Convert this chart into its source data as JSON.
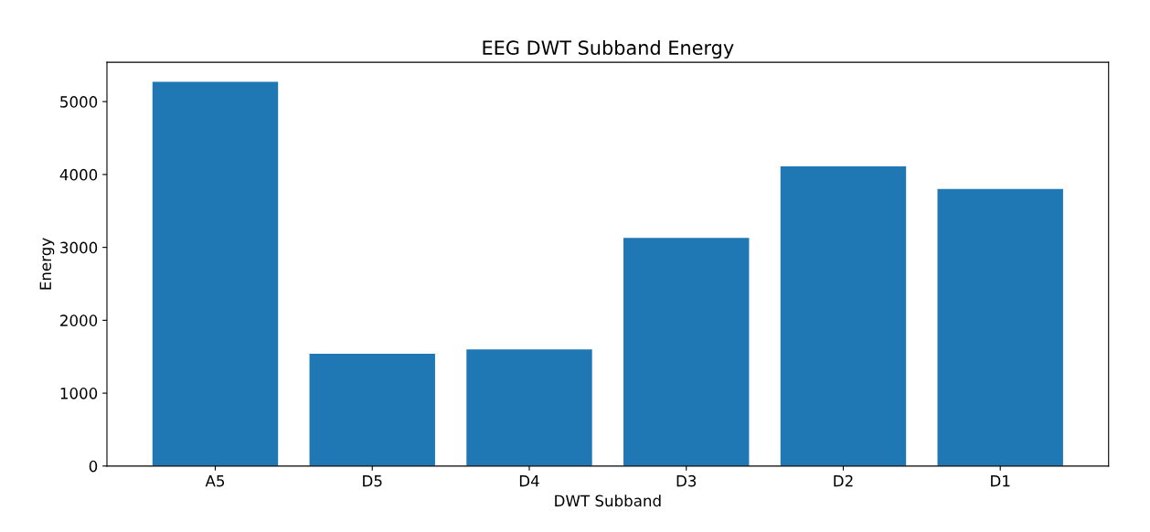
{
  "chart_data": {
    "type": "bar",
    "title": "EEG DWT Subband Energy",
    "xlabel": "DWT Subband",
    "ylabel": "Energy",
    "categories": [
      "A5",
      "D5",
      "D4",
      "D3",
      "D2",
      "D1"
    ],
    "values": [
      5270,
      1540,
      1600,
      3130,
      4110,
      3800
    ],
    "color": "#1f77b4",
    "ylim": [
      0,
      5540
    ],
    "yticks": [
      0,
      1000,
      2000,
      3000,
      4000,
      5000
    ],
    "grid": false,
    "legend": false
  }
}
